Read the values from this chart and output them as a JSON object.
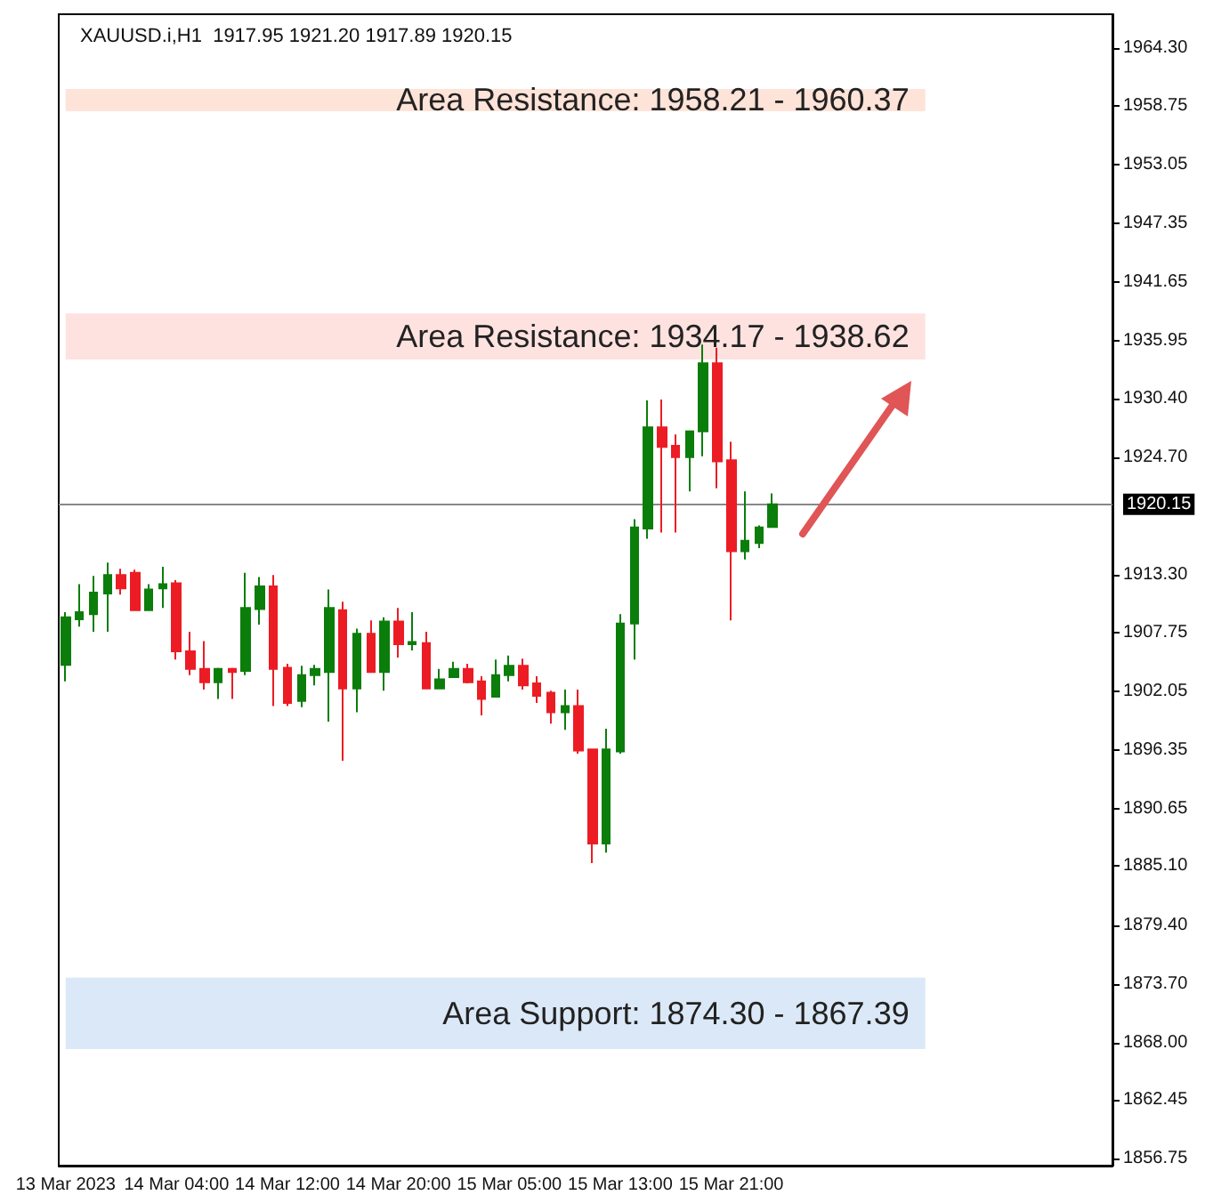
{
  "chart_data": {
    "type": "candlestick",
    "title": "XAUUSD.i,H1  1917.95 1921.20 1917.89 1920.15",
    "categories": [
      "13 Mar 2023",
      null,
      null,
      null,
      null,
      null,
      null,
      null,
      "14 Mar 04:00",
      null,
      null,
      null,
      null,
      null,
      null,
      null,
      "14 Mar 12:00",
      null,
      null,
      null,
      null,
      null,
      null,
      null,
      "14 Mar 20:00",
      null,
      null,
      null,
      null,
      null,
      null,
      null,
      "15 Mar 05:00",
      null,
      null,
      null,
      null,
      null,
      null,
      null,
      "15 Mar 13:00",
      null,
      null,
      null,
      null,
      null,
      null,
      null,
      "15 Mar 21:00",
      null,
      null,
      null,
      null,
      null,
      null,
      null,
      null,
      null,
      null,
      null,
      null,
      null,
      null,
      null,
      null,
      null,
      null,
      null,
      null,
      null,
      null,
      null,
      null,
      null,
      null,
      null
    ],
    "ohlc": [
      [
        1904.6,
        1909.7,
        1903.0,
        1909.2
      ],
      [
        1909.0,
        1912.4,
        1908.3,
        1909.7
      ],
      [
        1909.5,
        1913.2,
        1907.8,
        1911.6
      ],
      [
        1911.5,
        1914.5,
        1907.8,
        1913.3
      ],
      [
        1913.3,
        1913.9,
        1911.4,
        1912.0
      ],
      [
        1913.5,
        1913.8,
        1909.8,
        1909.9
      ],
      [
        1909.9,
        1912.4,
        1909.8,
        1911.9
      ],
      [
        1912.0,
        1914.1,
        1910.1,
        1912.4
      ],
      [
        1912.5,
        1912.8,
        1905.1,
        1905.9
      ],
      [
        1905.9,
        1907.8,
        1903.6,
        1904.2
      ],
      [
        1904.2,
        1906.9,
        1902.2,
        1902.9
      ],
      [
        1902.9,
        1904.3,
        1901.3,
        1904.2
      ],
      [
        1904.2,
        1904.3,
        1901.3,
        1903.9
      ],
      [
        1904.0,
        1913.5,
        1903.6,
        1910.1
      ],
      [
        1910.0,
        1913.1,
        1908.5,
        1912.2
      ],
      [
        1912.2,
        1913.3,
        1900.6,
        1904.2
      ],
      [
        1904.3,
        1904.7,
        1900.6,
        1900.9
      ],
      [
        1901.1,
        1904.5,
        1900.5,
        1903.6
      ],
      [
        1903.6,
        1904.6,
        1902.6,
        1904.2
      ],
      [
        1903.9,
        1911.9,
        1899.1,
        1910.1
      ],
      [
        1909.9,
        1910.7,
        1895.3,
        1902.3
      ],
      [
        1902.3,
        1908.1,
        1900.0,
        1907.6
      ],
      [
        1907.6,
        1908.9,
        1903.9,
        1903.9
      ],
      [
        1903.9,
        1909.2,
        1902.1,
        1908.8
      ],
      [
        1908.8,
        1910.1,
        1905.3,
        1906.6
      ],
      [
        1906.6,
        1909.7,
        1906.0,
        1906.8
      ],
      [
        1906.7,
        1907.8,
        1902.3,
        1902.3
      ],
      [
        1902.3,
        1904.2,
        1902.3,
        1903.2
      ],
      [
        1903.4,
        1904.9,
        1903.4,
        1904.2
      ],
      [
        1904.2,
        1904.7,
        1902.8,
        1902.9
      ],
      [
        1903.0,
        1903.5,
        1899.7,
        1901.3
      ],
      [
        1901.5,
        1905.1,
        1901.5,
        1903.6
      ],
      [
        1903.6,
        1905.5,
        1903.0,
        1904.5
      ],
      [
        1904.5,
        1905.2,
        1902.2,
        1902.6
      ],
      [
        1902.8,
        1903.5,
        1900.9,
        1901.6
      ],
      [
        1901.9,
        1902.1,
        1898.9,
        1900.0
      ],
      [
        1900.0,
        1902.2,
        1898.3,
        1900.6
      ],
      [
        1900.6,
        1902.2,
        1896.0,
        1896.3
      ],
      [
        1896.4,
        1896.4,
        1885.4,
        1887.3
      ],
      [
        1887.3,
        1898.4,
        1886.4,
        1896.4
      ],
      [
        1896.2,
        1909.5,
        1896.0,
        1908.6
      ],
      [
        1908.6,
        1918.7,
        1905.1,
        1917.9
      ],
      [
        1917.8,
        1930.2,
        1916.8,
        1927.6
      ],
      [
        1927.6,
        1930.3,
        1917.4,
        1925.7
      ],
      [
        1925.8,
        1926.9,
        1917.4,
        1924.7
      ],
      [
        1924.7,
        1927.2,
        1921.4,
        1927.2
      ],
      [
        1927.2,
        1935.6,
        1924.8,
        1933.8
      ],
      [
        1933.8,
        1935.3,
        1921.7,
        1924.3
      ],
      [
        1924.4,
        1926.2,
        1908.9,
        1915.6
      ],
      [
        1915.6,
        1921.4,
        1914.8,
        1916.6
      ],
      [
        1916.4,
        1918.1,
        1915.9,
        1917.9
      ],
      [
        1917.95,
        1921.2,
        1917.89,
        1920.15
      ],
      null,
      null,
      null,
      null,
      null,
      null,
      null,
      null,
      null,
      null,
      null,
      null,
      null,
      null,
      null,
      null,
      null,
      null,
      null,
      null,
      null,
      null,
      null,
      null
    ],
    "colors": [
      "#0b7d0b",
      "#0b7d0b",
      "#0b7d0b",
      "#0b7d0b",
      "#ec1c24",
      "#ec1c24",
      "#0b7d0b",
      "#0b7d0b",
      "#ec1c24",
      "#ec1c24",
      "#ec1c24",
      "#0b7d0b",
      "#ec1c24",
      "#0b7d0b",
      "#0b7d0b",
      "#ec1c24",
      "#ec1c24",
      "#0b7d0b",
      "#0b7d0b",
      "#0b7d0b",
      "#ec1c24",
      "#0b7d0b",
      "#ec1c24",
      "#0b7d0b",
      "#ec1c24",
      "#0b7d0b",
      "#ec1c24",
      "#0b7d0b",
      "#0b7d0b",
      "#ec1c24",
      "#ec1c24",
      "#0b7d0b",
      "#0b7d0b",
      "#ec1c24",
      "#ec1c24",
      "#ec1c24",
      "#0b7d0b",
      "#ec1c24",
      "#ec1c24",
      "#0b7d0b",
      "#0b7d0b",
      "#0b7d0b",
      "#0b7d0b",
      "#ec1c24",
      "#ec1c24",
      "#0b7d0b",
      "#0b7d0b",
      "#ec1c24",
      "#ec1c24",
      "#0b7d0b",
      "#0b7d0b",
      "#0b7d0b",
      null,
      null,
      null,
      null,
      null,
      null,
      null,
      null,
      null,
      null,
      null,
      null,
      null,
      null,
      null,
      null,
      null,
      null,
      null,
      null,
      null,
      null,
      null,
      null
    ],
    "ylim": [
      1856.1,
      1967.6
    ],
    "yticks": [
      {
        "value": 1964.3,
        "label": "1964.30"
      },
      {
        "value": 1958.75,
        "label": "1958.75"
      },
      {
        "value": 1953.05,
        "label": "1953.05"
      },
      {
        "value": 1947.35,
        "label": "1947.35"
      },
      {
        "value": 1941.65,
        "label": "1941.65"
      },
      {
        "value": 1935.95,
        "label": "1935.95"
      },
      {
        "value": 1930.4,
        "label": "1930.40"
      },
      {
        "value": 1924.7,
        "label": "1924.70"
      },
      {
        "value": 1913.3,
        "label": "1913.30"
      },
      {
        "value": 1907.75,
        "label": "1907.75"
      },
      {
        "value": 1902.05,
        "label": "1902.05"
      },
      {
        "value": 1896.35,
        "label": "1896.35"
      },
      {
        "value": 1890.65,
        "label": "1890.65"
      },
      {
        "value": 1885.1,
        "label": "1885.10"
      },
      {
        "value": 1879.4,
        "label": "1879.40"
      },
      {
        "value": 1873.7,
        "label": "1873.70"
      },
      {
        "value": 1868,
        "label": "1868.00"
      },
      {
        "value": 1862.45,
        "label": "1862.45"
      },
      {
        "value": 1856.75,
        "label": "1856.75"
      }
    ],
    "bands": [
      {
        "axis": "y",
        "from": 1958.21,
        "to": 1960.37,
        "label": "Area Resistance: 1958.21 - 1960.37",
        "color": "#fde3d8"
      },
      {
        "axis": "y",
        "from": 1934.17,
        "to": 1938.62,
        "label": "Area Resistance: 1934.17 - 1938.62",
        "color": "#fde2e0"
      },
      {
        "axis": "y",
        "from": 1867.39,
        "to": 1874.3,
        "label": "Area Support: 1874.30 - 1867.39",
        "color": "#dbe8f7"
      }
    ],
    "ref_lines": [
      {
        "axis": "y",
        "value": 1920.15,
        "label": "1920.15",
        "color": "#888888"
      }
    ],
    "grid": false
  }
}
